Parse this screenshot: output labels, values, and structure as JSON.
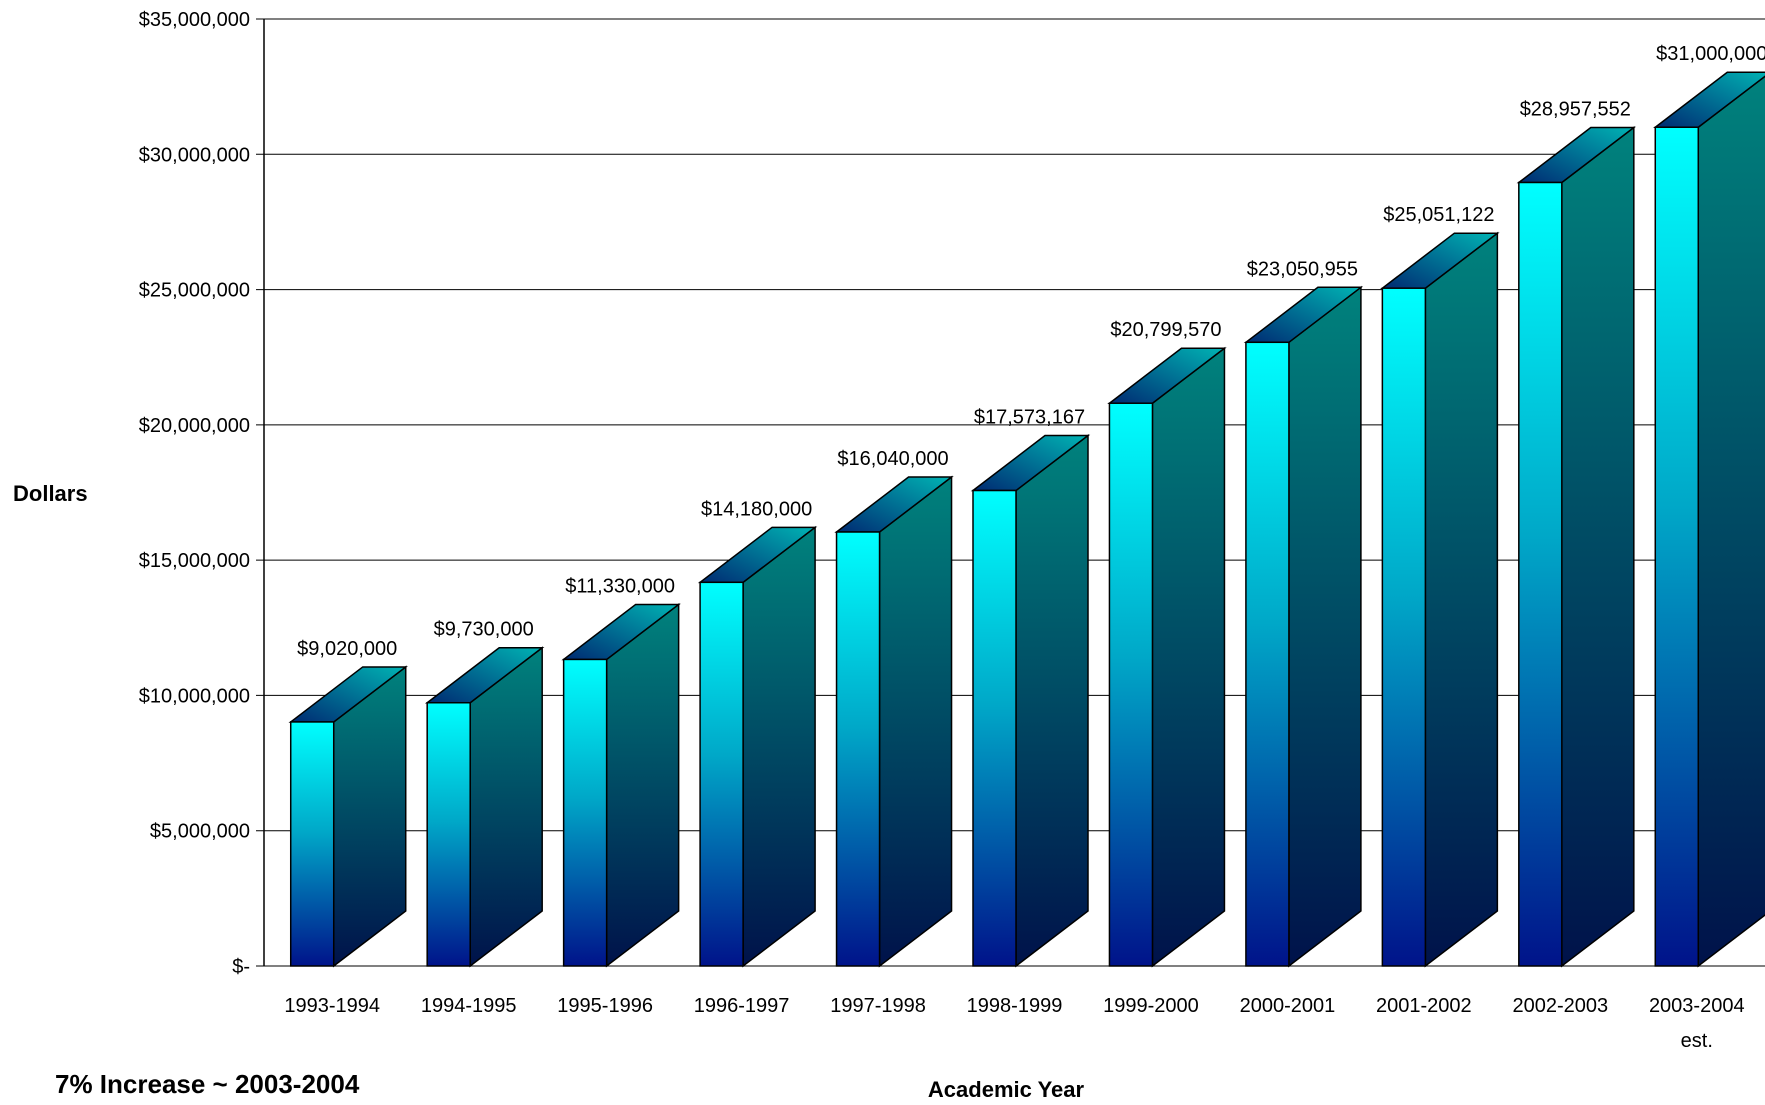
{
  "chart_data": {
    "type": "bar",
    "style": "3d-column",
    "categories": [
      "1993-1994",
      "1994-1995",
      "1995-1996",
      "1996-1997",
      "1997-1998",
      "1998-1999",
      "1999-2000",
      "2000-2001",
      "2001-2002",
      "2002-2003",
      "2003-2004 est."
    ],
    "category_lines": [
      [
        "1993-1994"
      ],
      [
        "1994-1995"
      ],
      [
        "1995-1996"
      ],
      [
        "1996-1997"
      ],
      [
        "1997-1998"
      ],
      [
        "1998-1999"
      ],
      [
        "1999-2000"
      ],
      [
        "2000-2001"
      ],
      [
        "2001-2002"
      ],
      [
        "2002-2003"
      ],
      [
        "2003-2004",
        "est."
      ]
    ],
    "values": [
      9020000,
      9730000,
      11330000,
      14180000,
      16040000,
      17573167,
      20799570,
      23050955,
      25051122,
      28957552,
      31000000
    ],
    "data_labels": [
      "$9,020,000",
      "$9,730,000",
      "$11,330,000",
      "$14,180,000",
      "$16,040,000",
      "$17,573,167",
      "$20,799,570",
      "$23,050,955",
      "$25,051,122",
      "$28,957,552",
      "$31,000,000"
    ],
    "ylim": [
      0,
      35000000
    ],
    "yticks": [
      0,
      5000000,
      10000000,
      15000000,
      20000000,
      25000000,
      30000000,
      35000000
    ],
    "ytick_labels": [
      "$-",
      "$5,000,000",
      "$10,000,000",
      "$15,000,000",
      "$20,000,000",
      "$25,000,000",
      "$30,000,000",
      "$35,000,000"
    ],
    "xlabel": "Academic Year",
    "ylabel": "Dollars",
    "grid": true,
    "legend": "none",
    "annotation": "7% Increase ~ 2003-2004",
    "colors": {
      "front_top": "#00ffff",
      "front_mid": "#00a8c8",
      "front_bottom": "#00138a",
      "side_top": "#00827d",
      "side_bottom": "#00124a",
      "top_light": "#00b4b4",
      "top_dark": "#002a72"
    }
  }
}
